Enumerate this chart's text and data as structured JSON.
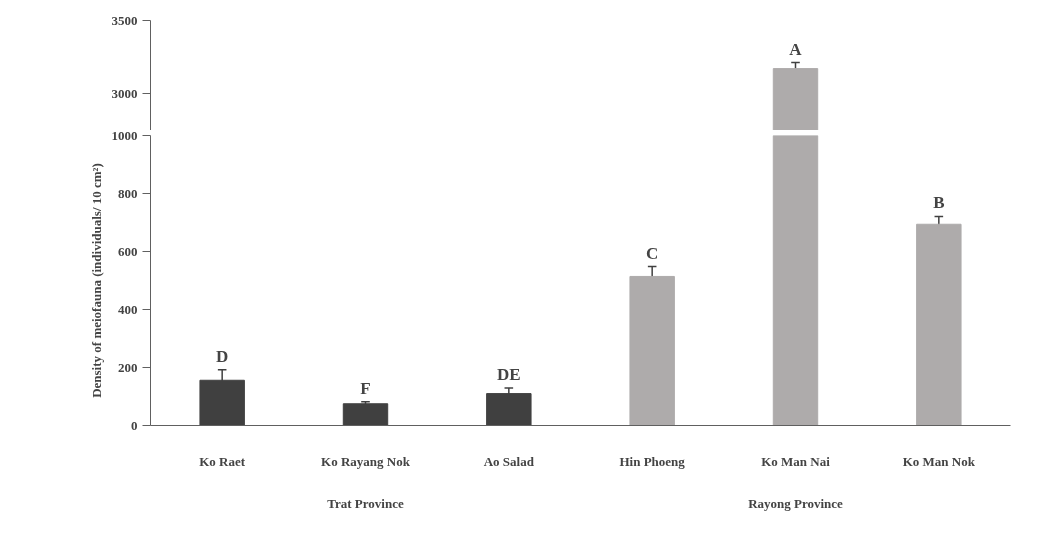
{
  "chart_data": [
    {
      "type": "bar",
      "categories": [
        "Ko Raet",
        "Ko Rayang Nok",
        "Ao Salad",
        "Hin Phoeng",
        "Ko Man Nai",
        "Ko Man Nok"
      ],
      "values": [
        null,
        null,
        null,
        null,
        3172,
        null
      ],
      "errors": [
        null,
        null,
        null,
        null,
        41,
        null
      ],
      "colors": [
        "#404040",
        "#404040",
        "#404040",
        "#aeabab",
        "#aeabab",
        "#aeabab"
      ],
      "ylim": [
        2750,
        3500
      ],
      "yticks": [
        3000,
        3500
      ],
      "tick_labels": "y",
      "grid": false,
      "annotations": [
        {
          "text": "A",
          "x": "Ko Man Nai",
          "y": 3213
        }
      ]
    },
    {
      "type": "bar",
      "categories": [
        "Ko Raet",
        "Ko Rayang Nok",
        "Ao Salad",
        "Hin Phoeng",
        "Ko Man Nai",
        "Ko Man Nok"
      ],
      "values": [
        156,
        75,
        110,
        514,
        1000,
        694
      ],
      "errors": [
        36,
        7,
        19,
        34,
        null,
        27
      ],
      "colors": [
        "#404040",
        "#404040",
        "#404040",
        "#aeabab",
        "#aeabab",
        "#aeabab"
      ],
      "ylabel": "Density of meiofauna (individuals/ 10 cm²)",
      "ylim": [
        0,
        1000
      ],
      "yticks": [
        0,
        200,
        400,
        600,
        800,
        1000
      ],
      "grid": false,
      "annotations": [
        {
          "text": "D",
          "x": "Ko Raet",
          "y": 192
        },
        {
          "text": "F",
          "x": "Ko Rayang Nok",
          "y": 82
        },
        {
          "text": "DE",
          "x": "Ao Salad",
          "y": 129
        },
        {
          "text": "C",
          "x": "Hin Phoeng",
          "y": 548
        },
        {
          "text": "B",
          "x": "Ko Man Nok",
          "y": 721
        },
        "Trat Province",
        "Rayong Province"
      ]
    }
  ]
}
